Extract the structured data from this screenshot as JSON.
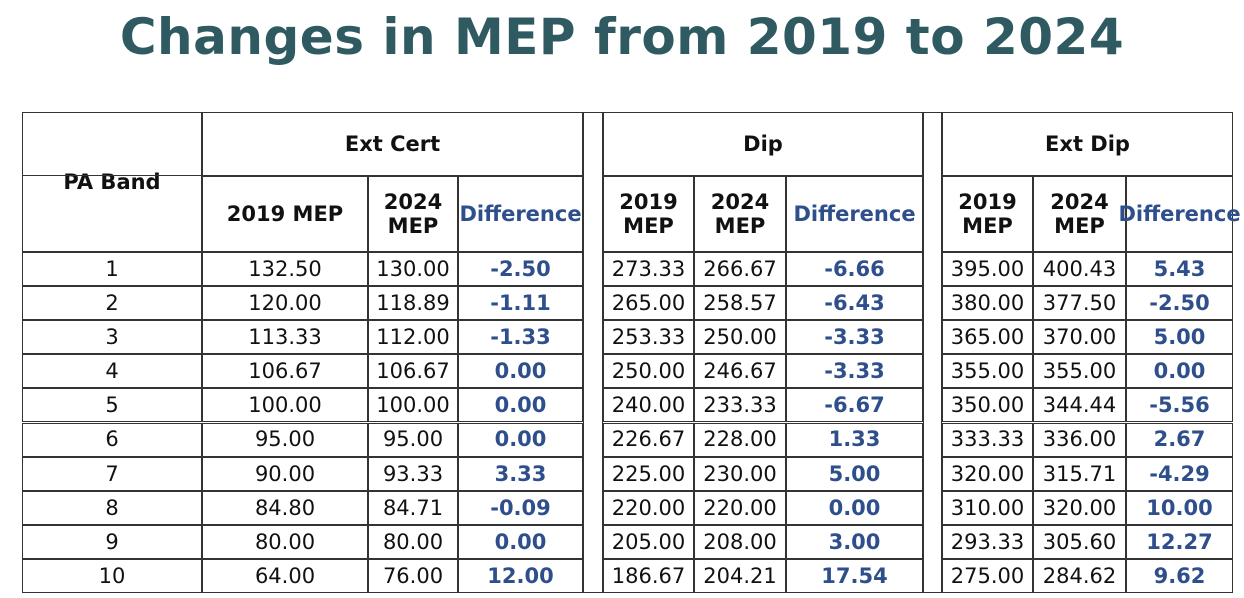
{
  "title": "Changes in MEP from 2019 to 2024",
  "header": {
    "pa_band": "PA Band",
    "groups": [
      "Ext Cert",
      "Dip",
      "Ext Dip"
    ],
    "cols": [
      [
        "2019 MEP",
        "2024 MEP",
        "Difference"
      ],
      [
        "2019 MEP",
        "2024 MEP",
        "Difference"
      ],
      [
        "2019 MEP",
        "2024 MEP",
        "Difference"
      ]
    ]
  },
  "rows": [
    [
      "1",
      "132.50",
      "130.00",
      "-2.50",
      "273.33",
      "266.67",
      "-6.66",
      "395.00",
      "400.43",
      "5.43"
    ],
    [
      "2",
      "120.00",
      "118.89",
      "-1.11",
      "265.00",
      "258.57",
      "-6.43",
      "380.00",
      "377.50",
      "-2.50"
    ],
    [
      "3",
      "113.33",
      "112.00",
      "-1.33",
      "253.33",
      "250.00",
      "-3.33",
      "365.00",
      "370.00",
      "5.00"
    ],
    [
      "4",
      "106.67",
      "106.67",
      "0.00",
      "250.00",
      "246.67",
      "-3.33",
      "355.00",
      "355.00",
      "0.00"
    ],
    [
      "5",
      "100.00",
      "100.00",
      "0.00",
      "240.00",
      "233.33",
      "-6.67",
      "350.00",
      "344.44",
      "-5.56"
    ],
    [
      "6",
      "95.00",
      "95.00",
      "0.00",
      "226.67",
      "228.00",
      "1.33",
      "333.33",
      "336.00",
      "2.67"
    ],
    [
      "7",
      "90.00",
      "93.33",
      "3.33",
      "225.00",
      "230.00",
      "5.00",
      "320.00",
      "315.71",
      "-4.29"
    ],
    [
      "8",
      "84.80",
      "84.71",
      "-0.09",
      "220.00",
      "220.00",
      "0.00",
      "310.00",
      "320.00",
      "10.00"
    ],
    [
      "9",
      "80.00",
      "80.00",
      "0.00",
      "205.00",
      "208.00",
      "3.00",
      "293.33",
      "305.60",
      "12.27"
    ],
    [
      "10",
      "64.00",
      "76.00",
      "12.00",
      "186.67",
      "204.21",
      "17.54",
      "275.00",
      "284.62",
      "9.62"
    ]
  ]
}
